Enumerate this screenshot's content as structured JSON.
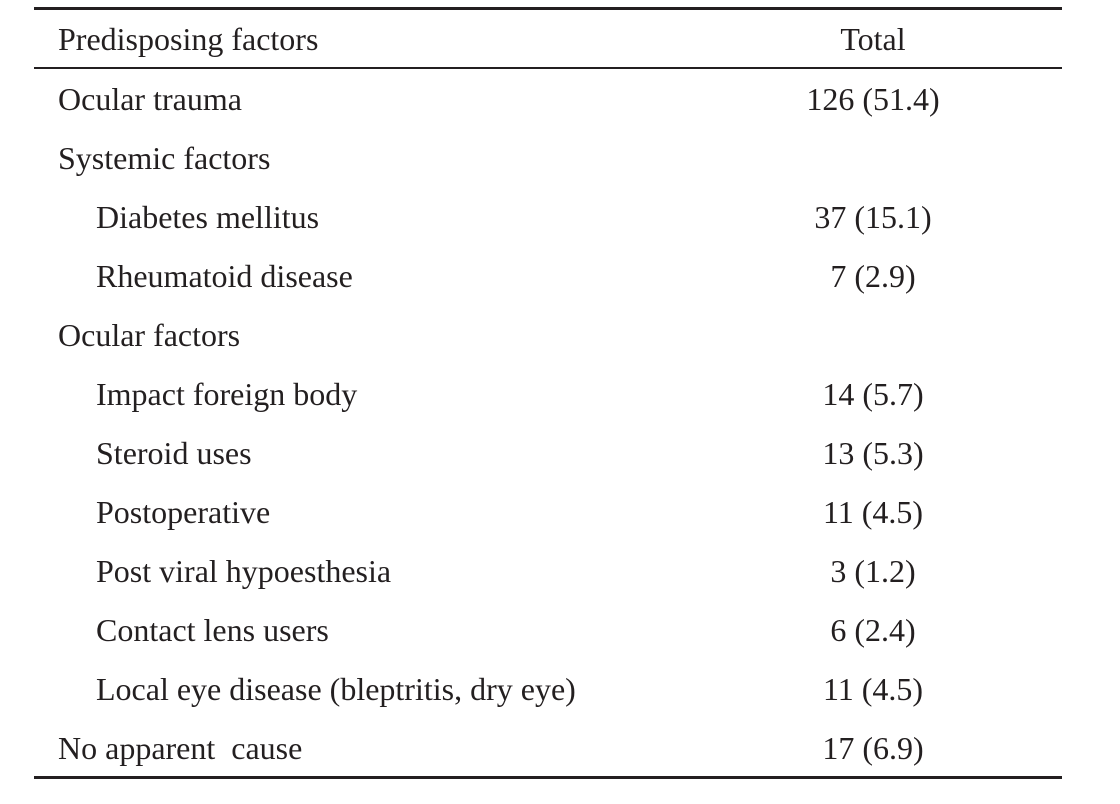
{
  "table": {
    "header": {
      "factor": "Predisposing factors",
      "total": "Total"
    },
    "rows": [
      {
        "label": "Ocular trauma",
        "value": "126 (51.4)",
        "indent": false
      },
      {
        "label": "Systemic factors",
        "value": "",
        "indent": false
      },
      {
        "label": "Diabetes mellitus",
        "value": "37 (15.1)",
        "indent": true
      },
      {
        "label": "Rheumatoid disease",
        "value": "7 (2.9)",
        "indent": true
      },
      {
        "label": "Ocular factors",
        "value": "",
        "indent": false
      },
      {
        "label": "Impact foreign body",
        "value": "14 (5.7)",
        "indent": true
      },
      {
        "label": "Steroid uses",
        "value": "13 (5.3)",
        "indent": true
      },
      {
        "label": "Postoperative",
        "value": "11 (4.5)",
        "indent": true
      },
      {
        "label": "Post viral hypoesthesia",
        "value": "3 (1.2)",
        "indent": true
      },
      {
        "label": "Contact lens users",
        "value": "6 (2.4)",
        "indent": true
      },
      {
        "label": "Local eye disease (bleptritis, dry eye)",
        "value": "11 (4.5)",
        "indent": true
      },
      {
        "label": "No apparent  cause",
        "value": "17 (6.9)",
        "indent": false
      }
    ]
  }
}
